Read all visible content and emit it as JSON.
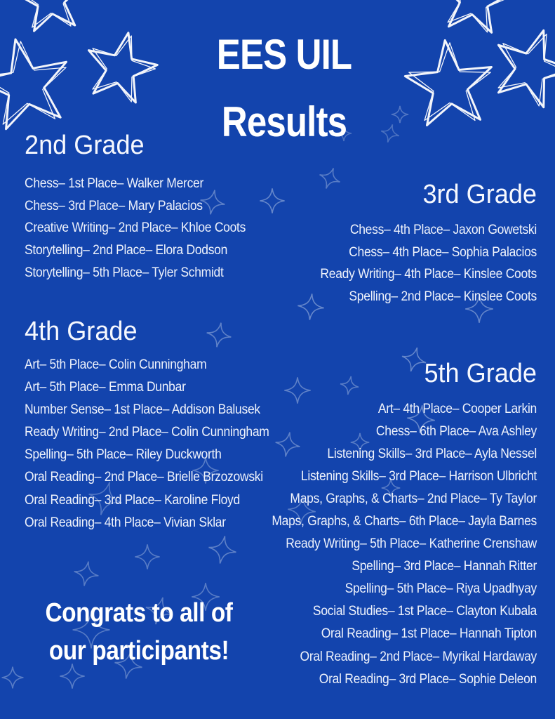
{
  "poster": {
    "title": {
      "line1": "EES UIL",
      "line2": "Results"
    },
    "congrats": {
      "line1": "Congrats to all of",
      "line2": "our participants!"
    },
    "colors": {
      "background": "#1344ad",
      "text": "#eef2fb",
      "title_text": "#ffffff",
      "sparkle": "#9db4de",
      "star_outline": "#ffffff"
    },
    "decor": {
      "corner_star_icon": "star-doodle-icon",
      "sparkle_icon": "sparkle-icon"
    },
    "sections": [
      {
        "id": "grade-2",
        "heading": "2nd Grade",
        "align": "left",
        "entries": [
          "Chess– 1st Place– Walker Mercer",
          "Chess– 3rd Place– Mary Palacios",
          "Creative Writing– 2nd Place– Khloe Coots",
          "Storytelling– 2nd Place– Elora Dodson",
          "Storytelling– 5th Place– Tyler Schmidt"
        ]
      },
      {
        "id": "grade-3",
        "heading": "3rd Grade",
        "align": "right",
        "entries": [
          "Chess– 4th Place– Jaxon Gowetski",
          "Chess– 4th Place– Sophia Palacios",
          "Ready Writing– 4th Place– Kinslee Coots",
          "Spelling– 2nd Place– Kinslee Coots"
        ]
      },
      {
        "id": "grade-4",
        "heading": "4th Grade",
        "align": "left",
        "entries": [
          "Art– 5th Place– Colin Cunningham",
          "Art– 5th Place– Emma Dunbar",
          "Number Sense– 1st Place– Addison Balusek",
          "Ready Writing– 2nd Place– Colin Cunningham",
          "Spelling– 5th Place– Riley Duckworth",
          "Oral Reading– 2nd Place– Brielle Brzozowski",
          "Oral Reading– 3rd Place– Karoline Floyd",
          "Oral Reading– 4th Place– Vivian Sklar"
        ]
      },
      {
        "id": "grade-5",
        "heading": "5th Grade",
        "align": "right",
        "entries": [
          "Art– 4th Place– Cooper Larkin",
          "Chess– 6th Place– Ava Ashley",
          "Listening Skills– 3rd Place– Ayla Nessel",
          "Listening Skills– 3rd Place– Harrison Ulbricht",
          "Maps, Graphs, & Charts– 2nd Place– Ty Taylor",
          "Maps, Graphs, & Charts– 6th Place– Jayla Barnes",
          "Ready Writing– 5th Place– Katherine Crenshaw",
          "Spelling– 3rd Place– Hannah Ritter",
          "Spelling– 5th Place– Riya Upadhyay",
          "Social Studies– 1st Place– Clayton Kubala",
          "Oral Reading– 1st Place– Hannah Tipton",
          "Oral Reading– 2nd Place– Myrikal Hardaway",
          "Oral Reading– 3rd Place– Sophie Deleon"
        ]
      }
    ]
  }
}
